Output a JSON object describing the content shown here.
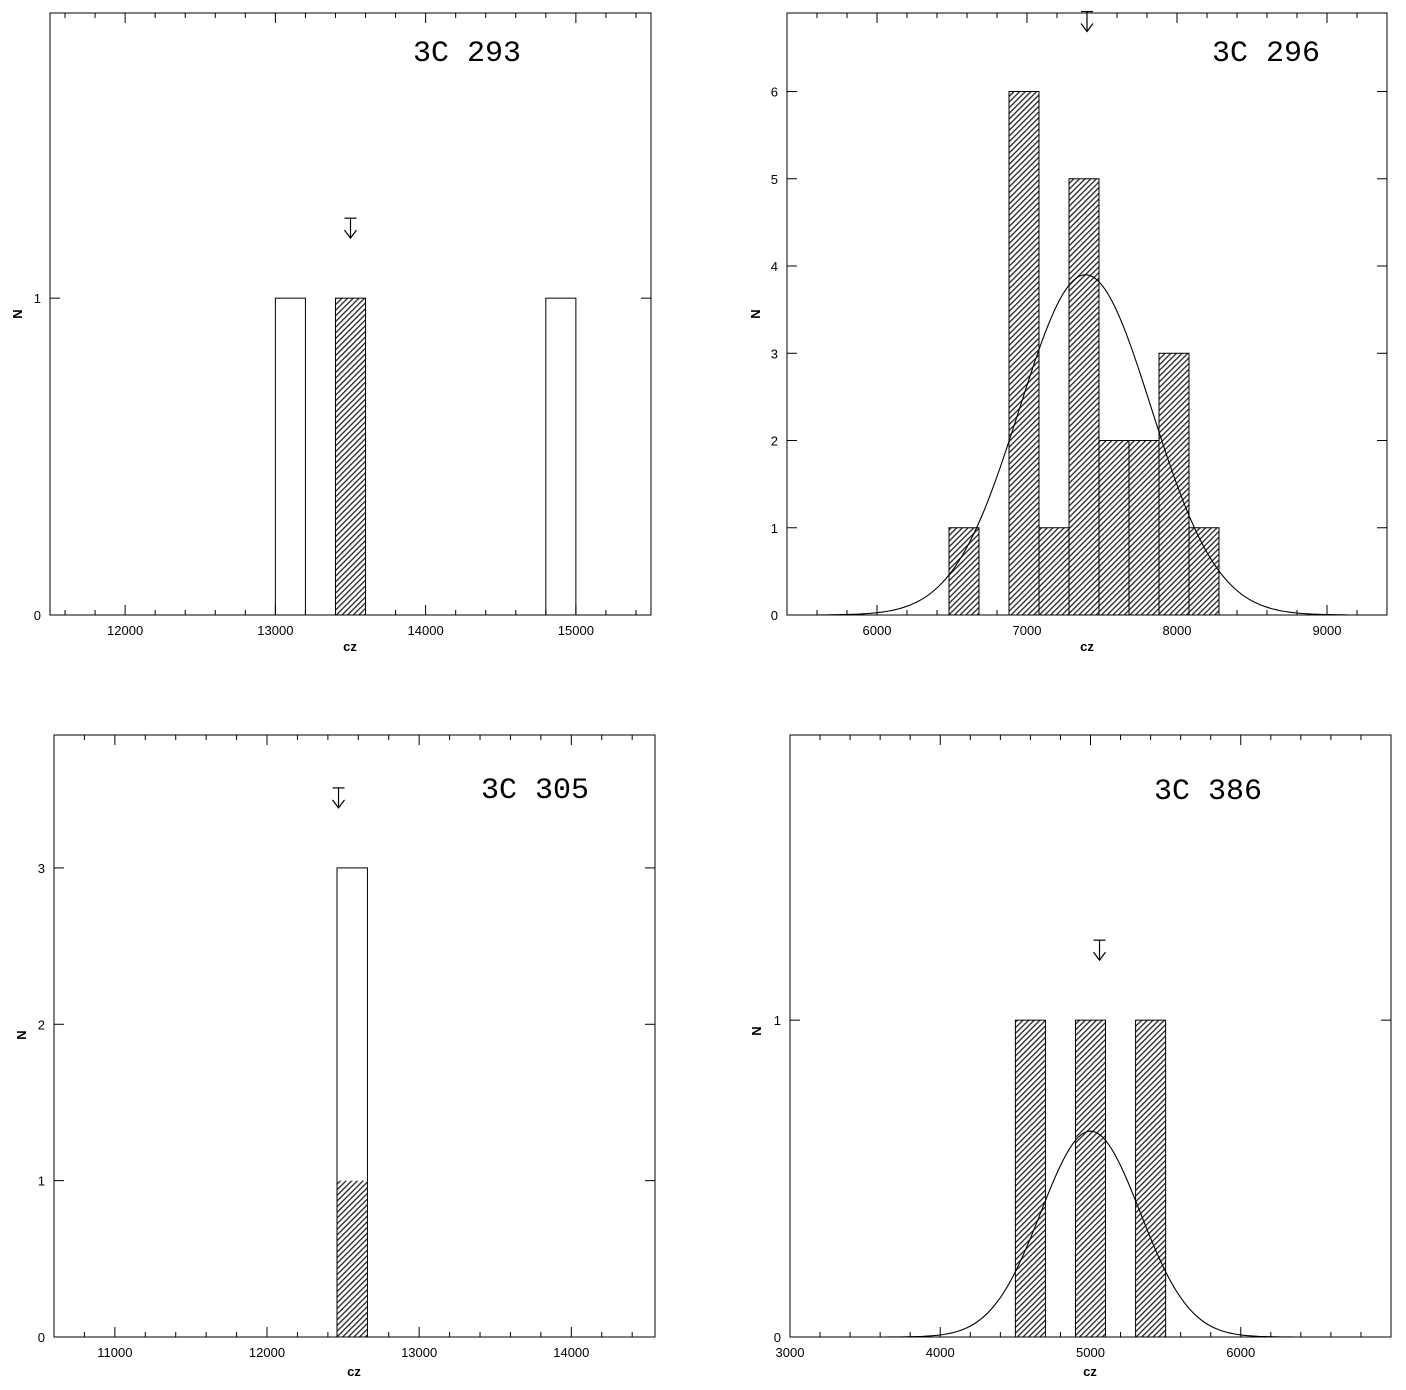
{
  "chart_data": [
    {
      "type": "bar",
      "title": "3C 293",
      "xlabel": "cz",
      "ylabel": "N",
      "xlim": [
        11500,
        15500
      ],
      "ylim": [
        0,
        1.9
      ],
      "x_ticks": [
        12000,
        13000,
        14000,
        15000
      ],
      "y_ticks": [
        0,
        1
      ],
      "bin_width": 200,
      "bars": [
        {
          "x": 13000,
          "total": 1,
          "hatched": 0
        },
        {
          "x": 13400,
          "total": 1,
          "hatched": 1
        },
        {
          "x": 14800,
          "total": 1,
          "hatched": 0
        }
      ],
      "arrow_x": 13500,
      "gaussian": null,
      "grid": false
    },
    {
      "type": "bar",
      "title": "3C 296",
      "xlabel": "cz",
      "ylabel": "N",
      "xlim": [
        5400,
        9400
      ],
      "ylim": [
        0,
        6.9
      ],
      "x_ticks": [
        6000,
        7000,
        8000,
        9000
      ],
      "y_ticks": [
        0,
        1,
        2,
        3,
        4,
        5,
        6
      ],
      "bin_width": 200,
      "bars": [
        {
          "x": 6480,
          "total": 1,
          "hatched": 1
        },
        {
          "x": 6880,
          "total": 6,
          "hatched": 6
        },
        {
          "x": 7080,
          "total": 1,
          "hatched": 1
        },
        {
          "x": 7280,
          "total": 5,
          "hatched": 5
        },
        {
          "x": 7480,
          "total": 2,
          "hatched": 2
        },
        {
          "x": 7680,
          "total": 2,
          "hatched": 2
        },
        {
          "x": 7880,
          "total": 3,
          "hatched": 3
        },
        {
          "x": 8080,
          "total": 1,
          "hatched": 1
        }
      ],
      "arrow_x": 7400,
      "gaussian": {
        "mean": 7390,
        "sigma": 440,
        "peak": 3.9,
        "xmin": 5600,
        "xmax": 9150
      },
      "grid": false
    },
    {
      "type": "bar",
      "title": "3C 305",
      "xlabel": "cz",
      "ylabel": "N",
      "xlim": [
        10600,
        14550
      ],
      "ylim": [
        0,
        3.85
      ],
      "x_ticks": [
        11000,
        12000,
        13000,
        14000
      ],
      "y_ticks": [
        0,
        1,
        2,
        3
      ],
      "bin_width": 200,
      "bars": [
        {
          "x": 12460,
          "total": 3,
          "hatched": 1
        }
      ],
      "arrow_x": 12470,
      "gaussian": null,
      "grid": false
    },
    {
      "type": "bar",
      "title": "3C 386",
      "xlabel": "cz",
      "ylabel": "N",
      "xlim": [
        3000,
        7000
      ],
      "ylim": [
        0,
        1.9
      ],
      "x_ticks": [
        3000,
        4000,
        5000,
        6000
      ],
      "y_ticks": [
        0,
        1
      ],
      "bin_width": 200,
      "bars": [
        {
          "x": 4500,
          "total": 1,
          "hatched": 1
        },
        {
          "x": 4900,
          "total": 1,
          "hatched": 1
        },
        {
          "x": 5300,
          "total": 1,
          "hatched": 1
        }
      ],
      "arrow_x": 5060,
      "gaussian": {
        "mean": 5000,
        "sigma": 330,
        "peak": 0.65,
        "xmin": 3600,
        "xmax": 6500
      },
      "grid": false
    }
  ]
}
